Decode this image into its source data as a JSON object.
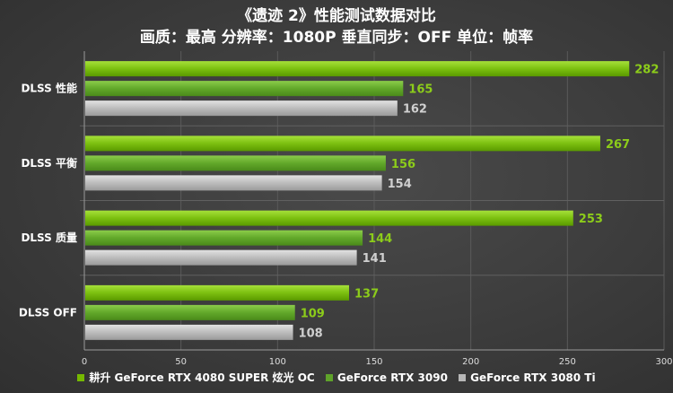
{
  "chart_data": {
    "type": "bar",
    "orientation": "horizontal",
    "title": "《遗迹 2》性能测试数据对比",
    "subtitle": "画质：最高 分辨率：1080P 垂直同步：OFF 单位：帧率",
    "categories": [
      "DLSS 性能",
      "DLSS 平衡",
      "DLSS 质量",
      "DLSS OFF"
    ],
    "series": [
      {
        "name": "耕升 GeForce RTX 4080 SUPER 炫光 OC",
        "values": [
          282,
          267,
          253,
          137
        ],
        "color": "#76b900"
      },
      {
        "name": "GeForce RTX 3090",
        "values": [
          165,
          156,
          144,
          109
        ],
        "color": "#5fa32a"
      },
      {
        "name": "GeForce RTX 3080 Ti",
        "values": [
          162,
          154,
          141,
          108
        ],
        "color": "#b8b8b8"
      }
    ],
    "xlim": [
      0,
      300
    ],
    "xticks": [
      "0",
      "50",
      "100",
      "150",
      "200",
      "250",
      "300"
    ],
    "grid": true,
    "legend_position": "bottom",
    "label_colors": [
      "#8ccc1a",
      "#8ccc1a",
      "#d0d0d0"
    ]
  }
}
